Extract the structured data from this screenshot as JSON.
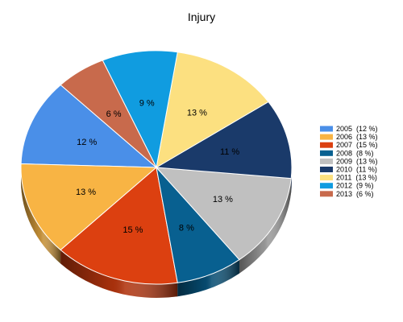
{
  "chart_data": {
    "type": "pie",
    "title": "Injury",
    "categories": [
      "2005",
      "2006",
      "2007",
      "2008",
      "2009",
      "2010",
      "2011",
      "2012",
      "2013"
    ],
    "values": [
      12,
      13,
      15,
      8,
      13,
      11,
      13,
      9,
      6
    ],
    "labels": [
      "12 %",
      "13 %",
      "15 %",
      "8 %",
      "13 %",
      "11 %",
      "13 %",
      "9 %",
      "6 %"
    ],
    "legend_labels": [
      "2005  (12 %)",
      "2006  (13 %)",
      "2007  (15 %)",
      "2008  (8 %)",
      "2009  (13 %)",
      "2010  (11 %)",
      "2011  (13 %)",
      "2012  (9 %)",
      "2013  (6 %)"
    ],
    "colors": [
      "#4a8fe8",
      "#f8b444",
      "#dc4010",
      "#086090",
      "#c0c0c0",
      "#1a3a6a",
      "#fce080",
      "#109ce0",
      "#c86a4c"
    ],
    "style": "3d",
    "legend_position": "right"
  }
}
